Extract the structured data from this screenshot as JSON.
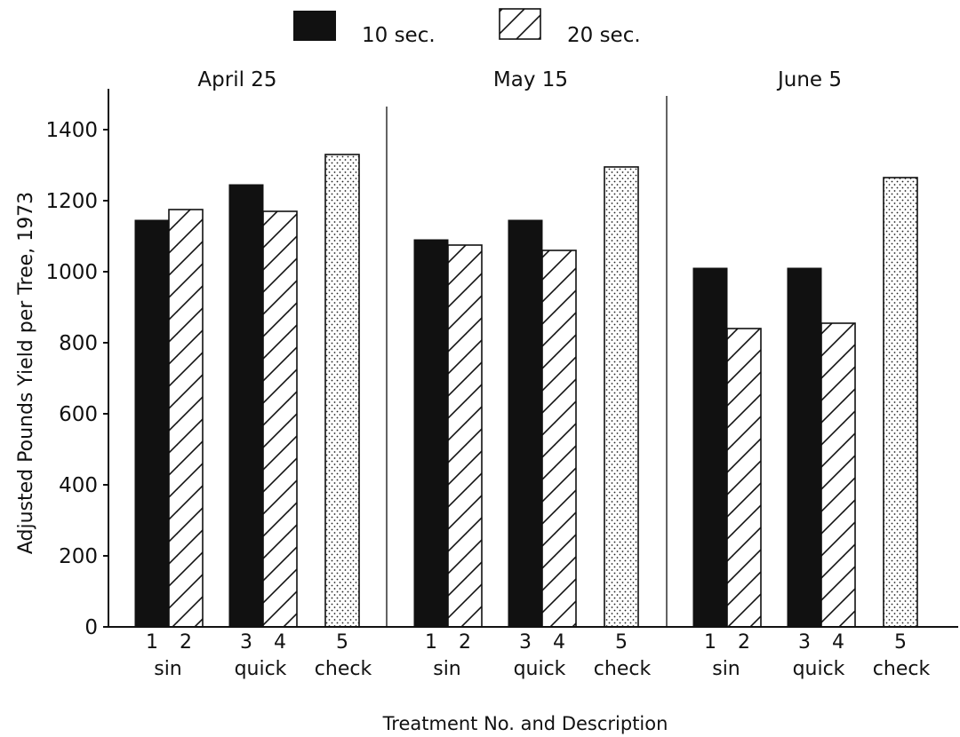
{
  "chart_data": {
    "type": "bar",
    "xlabel": "Treatment No. and Description",
    "ylabel": "Adjusted Pounds Yield per Tree, 1973",
    "ylim": [
      0,
      1500
    ],
    "yticks": [
      0,
      200,
      400,
      600,
      800,
      1000,
      1200,
      1400
    ],
    "legend": {
      "placement": "top-center",
      "entries": [
        {
          "label": "10 sec.",
          "fill": "solid-black"
        },
        {
          "label": "20 sec.",
          "fill": "diagonal-hatch"
        }
      ]
    },
    "groups": [
      {
        "label": "April 25",
        "bars": [
          {
            "treatment": "1",
            "value": 1145,
            "fill": "solid"
          },
          {
            "treatment": "2",
            "value": 1175,
            "fill": "hatch"
          },
          {
            "treatment": "3",
            "value": 1245,
            "fill": "solid"
          },
          {
            "treatment": "4",
            "value": 1170,
            "fill": "hatch"
          },
          {
            "treatment": "5",
            "value": 1330,
            "fill": "dots"
          }
        ],
        "descriptions": [
          "sin",
          "quick",
          "check"
        ]
      },
      {
        "label": "May 15",
        "bars": [
          {
            "treatment": "1",
            "value": 1090,
            "fill": "solid"
          },
          {
            "treatment": "2",
            "value": 1075,
            "fill": "hatch"
          },
          {
            "treatment": "3",
            "value": 1145,
            "fill": "solid"
          },
          {
            "treatment": "4",
            "value": 1060,
            "fill": "hatch"
          },
          {
            "treatment": "5",
            "value": 1295,
            "fill": "dots"
          }
        ],
        "descriptions": [
          "sin",
          "quick",
          "check"
        ]
      },
      {
        "label": "June 5",
        "bars": [
          {
            "treatment": "1",
            "value": 1010,
            "fill": "solid"
          },
          {
            "treatment": "2",
            "value": 840,
            "fill": "hatch"
          },
          {
            "treatment": "3",
            "value": 1010,
            "fill": "solid"
          },
          {
            "treatment": "4",
            "value": 855,
            "fill": "hatch"
          },
          {
            "treatment": "5",
            "value": 1265,
            "fill": "dots"
          }
        ],
        "descriptions": [
          "sin",
          "quick",
          "check"
        ]
      }
    ]
  }
}
